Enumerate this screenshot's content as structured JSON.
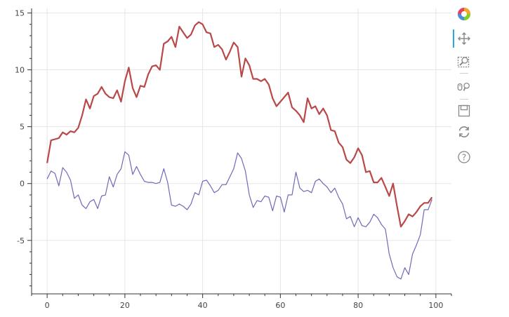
{
  "chart_data": {
    "type": "line",
    "xlim": [
      -4,
      104
    ],
    "ylim": [
      -9.7,
      15.4
    ],
    "x_ticks": [
      0,
      20,
      40,
      60,
      80,
      100
    ],
    "y_ticks": [
      -5,
      0,
      5,
      10,
      15
    ],
    "grid": true,
    "series": [
      {
        "color": "#b94848",
        "width": 2.2,
        "x": [
          0,
          1,
          2,
          3,
          4,
          5,
          6,
          7,
          8,
          9,
          10,
          11,
          12,
          13,
          14,
          15,
          16,
          17,
          18,
          19,
          20,
          21,
          22,
          23,
          24,
          25,
          26,
          27,
          28,
          29,
          30,
          31,
          32,
          33,
          34,
          35,
          36,
          37,
          38,
          39,
          40,
          41,
          42,
          43,
          44,
          45,
          46,
          47,
          48,
          49,
          50,
          51,
          52,
          53,
          54,
          55,
          56,
          57,
          58,
          59,
          60,
          61,
          62,
          63,
          64,
          65,
          66,
          67,
          68,
          69,
          70,
          71,
          72,
          73,
          74,
          75,
          76,
          77,
          78,
          79,
          80,
          81,
          82,
          83,
          84,
          85,
          86,
          87,
          88,
          89,
          90,
          91,
          92,
          93,
          94,
          95,
          96,
          97,
          98,
          99
        ],
        "y": [
          1.8,
          3.8,
          3.9,
          4.0,
          4.5,
          4.3,
          4.6,
          4.5,
          4.9,
          6.0,
          7.4,
          6.6,
          7.7,
          7.9,
          8.5,
          7.9,
          7.6,
          7.5,
          8.2,
          7.2,
          9.0,
          10.2,
          8.4,
          7.6,
          8.6,
          8.5,
          9.6,
          10.3,
          10.4,
          10.0,
          12.3,
          12.5,
          12.9,
          12.0,
          13.8,
          13.3,
          12.8,
          13.1,
          13.9,
          14.2,
          14.0,
          13.3,
          13.2,
          12.0,
          12.2,
          11.8,
          10.9,
          11.6,
          12.4,
          12.0,
          9.4,
          11.0,
          10.4,
          9.2,
          9.2,
          9.0,
          9.2,
          8.7,
          7.5,
          6.8,
          7.2,
          7.6,
          8.0,
          6.7,
          6.4,
          6.0,
          5.4,
          7.5,
          6.6,
          6.8,
          6.1,
          6.6,
          6.0,
          4.7,
          4.6,
          3.6,
          3.2,
          2.1,
          1.8,
          2.3,
          3.1,
          2.5,
          1.0,
          1.1,
          0.1,
          0.1,
          0.5,
          -0.3,
          -1.1,
          0.0,
          -2.0,
          -3.8,
          -3.3,
          -2.7,
          -2.9,
          -2.5,
          -2.0,
          -1.7,
          -1.7,
          -1.2
        ]
      },
      {
        "color": "#6e6ab8",
        "width": 1.2,
        "x": [
          0,
          1,
          2,
          3,
          4,
          5,
          6,
          7,
          8,
          9,
          10,
          11,
          12,
          13,
          14,
          15,
          16,
          17,
          18,
          19,
          20,
          21,
          22,
          23,
          24,
          25,
          26,
          27,
          28,
          29,
          30,
          31,
          32,
          33,
          34,
          35,
          36,
          37,
          38,
          39,
          40,
          41,
          42,
          43,
          44,
          45,
          46,
          47,
          48,
          49,
          50,
          51,
          52,
          53,
          54,
          55,
          56,
          57,
          58,
          59,
          60,
          61,
          62,
          63,
          64,
          65,
          66,
          67,
          68,
          69,
          70,
          71,
          72,
          73,
          74,
          75,
          76,
          77,
          78,
          79,
          80,
          81,
          82,
          83,
          84,
          85,
          86,
          87,
          88,
          89,
          90,
          91,
          92,
          93,
          94,
          95,
          96,
          97,
          98,
          99
        ],
        "y": [
          0.4,
          1.1,
          0.9,
          -0.2,
          1.4,
          1.0,
          0.3,
          -1.3,
          -1.0,
          -1.9,
          -2.2,
          -1.6,
          -1.4,
          -2.2,
          -1.1,
          -1.0,
          0.6,
          -0.3,
          0.8,
          1.3,
          2.8,
          2.5,
          0.8,
          1.5,
          0.8,
          0.2,
          0.1,
          0.1,
          0.0,
          0.1,
          1.3,
          0.1,
          -1.9,
          -2.0,
          -1.8,
          -2.0,
          -2.3,
          -1.8,
          -0.8,
          -1.0,
          0.2,
          0.3,
          -0.2,
          -0.8,
          -0.6,
          -0.1,
          -0.1,
          0.6,
          1.3,
          2.7,
          2.2,
          1.1,
          -1.0,
          -2.1,
          -1.5,
          -1.6,
          -1.1,
          -1.2,
          -2.4,
          -1.1,
          -1.2,
          -2.5,
          -1.0,
          -1.0,
          1.0,
          -0.4,
          -0.7,
          -0.6,
          -0.8,
          0.2,
          0.4,
          0.0,
          -0.3,
          -0.8,
          -0.4,
          -1.2,
          -1.8,
          -3.1,
          -2.9,
          -3.8,
          -3.0,
          -3.7,
          -3.8,
          -3.4,
          -2.7,
          -3.0,
          -3.6,
          -4.0,
          -6.2,
          -7.4,
          -8.2,
          -8.4,
          -7.4,
          -8.0,
          -6.2,
          -5.4,
          -4.5,
          -2.3,
          -2.3,
          -1.4
        ]
      }
    ]
  },
  "toolbar": {
    "items": [
      {
        "name": "bokeh-logo-icon",
        "color": "#e5435d"
      },
      {
        "name": "pan-icon"
      },
      {
        "name": "box-zoom-icon"
      },
      {
        "name": "wheel-zoom-icon"
      },
      {
        "name": "save-icon"
      },
      {
        "name": "reset-icon"
      },
      {
        "name": "help-icon"
      }
    ]
  }
}
